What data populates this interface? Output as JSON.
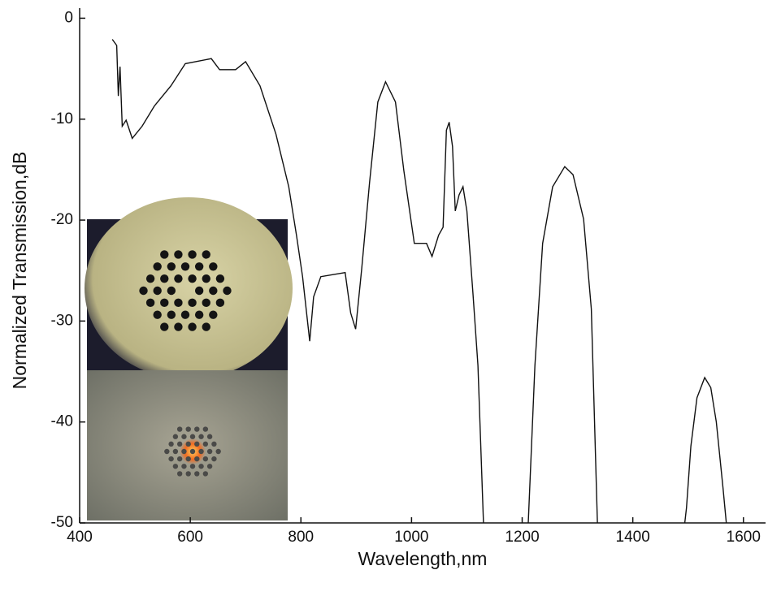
{
  "chart_data": {
    "type": "line",
    "x_label": "Wavelength,nm",
    "y_label": "Normalized Transmission,dB",
    "xlim": [
      400,
      1640
    ],
    "ylim": [
      -50,
      1
    ],
    "xticks": [
      400,
      600,
      800,
      1000,
      1200,
      1400,
      1600
    ],
    "yticks": [
      0,
      -10,
      -20,
      -30,
      -40,
      -50
    ],
    "x": [
      459,
      467,
      470,
      473,
      477,
      484,
      495,
      513,
      535,
      565,
      591,
      638,
      653,
      682,
      700,
      726,
      755,
      778,
      792,
      803,
      816,
      823,
      836,
      858,
      880,
      890,
      899,
      910,
      924,
      939,
      953,
      971,
      986,
      1005,
      1027,
      1037,
      1049,
      1057,
      1063,
      1068,
      1074,
      1079,
      1086,
      1093,
      1100,
      1111,
      1120,
      1130,
      null,
      1211,
      1223,
      1237,
      1255,
      1277,
      1292,
      1311,
      1325,
      1336,
      null,
      1494,
      1497,
      1505,
      1516,
      1530,
      1541,
      1551,
      1563,
      1569
    ],
    "series": [
      {
        "color": "#111111",
        "values": [
          -2.1,
          -2.7,
          -7.7,
          -4.8,
          -10.7,
          -10.1,
          -11.9,
          -10.7,
          -8.7,
          -6.7,
          -4.5,
          -4.0,
          -5.1,
          -5.1,
          -4.3,
          -6.7,
          -11.5,
          -16.7,
          -21.5,
          -25.6,
          -32,
          -27.6,
          -25.6,
          -25.4,
          -25.2,
          -29.2,
          -30.8,
          -24.8,
          -16.3,
          -8.3,
          -6.3,
          -8.3,
          -15.1,
          -22.3,
          -22.3,
          -23.6,
          -21.5,
          -20.7,
          -11.1,
          -10.3,
          -12.7,
          -19.1,
          -17.5,
          -16.7,
          -19.1,
          -27.2,
          -34.4,
          -50,
          null,
          -50,
          -34.4,
          -22.3,
          -16.7,
          -14.7,
          -15.5,
          -19.9,
          -28.8,
          -50,
          null,
          -50,
          -48.5,
          -42.4,
          -37.6,
          -35.6,
          -36.6,
          -40.0,
          -46.5,
          -50
        ]
      }
    ]
  }
}
